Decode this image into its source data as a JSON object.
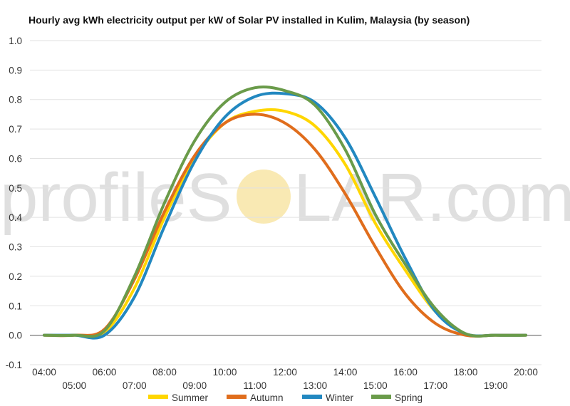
{
  "watermark": {
    "text_left": "profileS",
    "text_right": "LAR.com",
    "sun_color": "#f7e29a"
  },
  "chart_data": {
    "type": "line",
    "title": "Hourly avg kWh electricity output per kW of Solar PV installed in Kulim, Malaysia (by season)",
    "xlabel": "",
    "ylabel": "",
    "ylim": [
      -0.1,
      1.0
    ],
    "yticks": [
      "1.0",
      "0.9",
      "0.8",
      "0.7",
      "0.6",
      "0.5",
      "0.4",
      "0.3",
      "0.2",
      "0.1",
      "0.0",
      "-0.1"
    ],
    "x": [
      "04:00",
      "05:00",
      "06:00",
      "07:00",
      "08:00",
      "09:00",
      "10:00",
      "11:00",
      "12:00",
      "13:00",
      "14:00",
      "15:00",
      "16:00",
      "17:00",
      "18:00",
      "19:00",
      "20:00"
    ],
    "grid": true,
    "legend_position": "bottom",
    "series": [
      {
        "name": "Summer",
        "color": "#ffd600",
        "values": [
          0.0,
          0.0,
          0.01,
          0.16,
          0.4,
          0.6,
          0.72,
          0.76,
          0.76,
          0.71,
          0.58,
          0.38,
          0.22,
          0.08,
          0.005,
          0.0,
          0.0
        ]
      },
      {
        "name": "Autumn",
        "color": "#e06d1c",
        "values": [
          0.0,
          0.0,
          0.02,
          0.19,
          0.42,
          0.61,
          0.72,
          0.75,
          0.72,
          0.63,
          0.48,
          0.3,
          0.14,
          0.04,
          0.0,
          0.0,
          0.0
        ]
      },
      {
        "name": "Winter",
        "color": "#2288c0",
        "values": [
          0.0,
          0.0,
          0.0,
          0.13,
          0.37,
          0.59,
          0.74,
          0.81,
          0.82,
          0.79,
          0.67,
          0.47,
          0.26,
          0.08,
          0.005,
          0.0,
          0.0
        ]
      },
      {
        "name": "Spring",
        "color": "#6a9b4a",
        "values": [
          0.0,
          0.0,
          0.015,
          0.2,
          0.45,
          0.66,
          0.79,
          0.84,
          0.83,
          0.78,
          0.63,
          0.41,
          0.24,
          0.09,
          0.005,
          0.0,
          0.0
        ]
      }
    ]
  }
}
